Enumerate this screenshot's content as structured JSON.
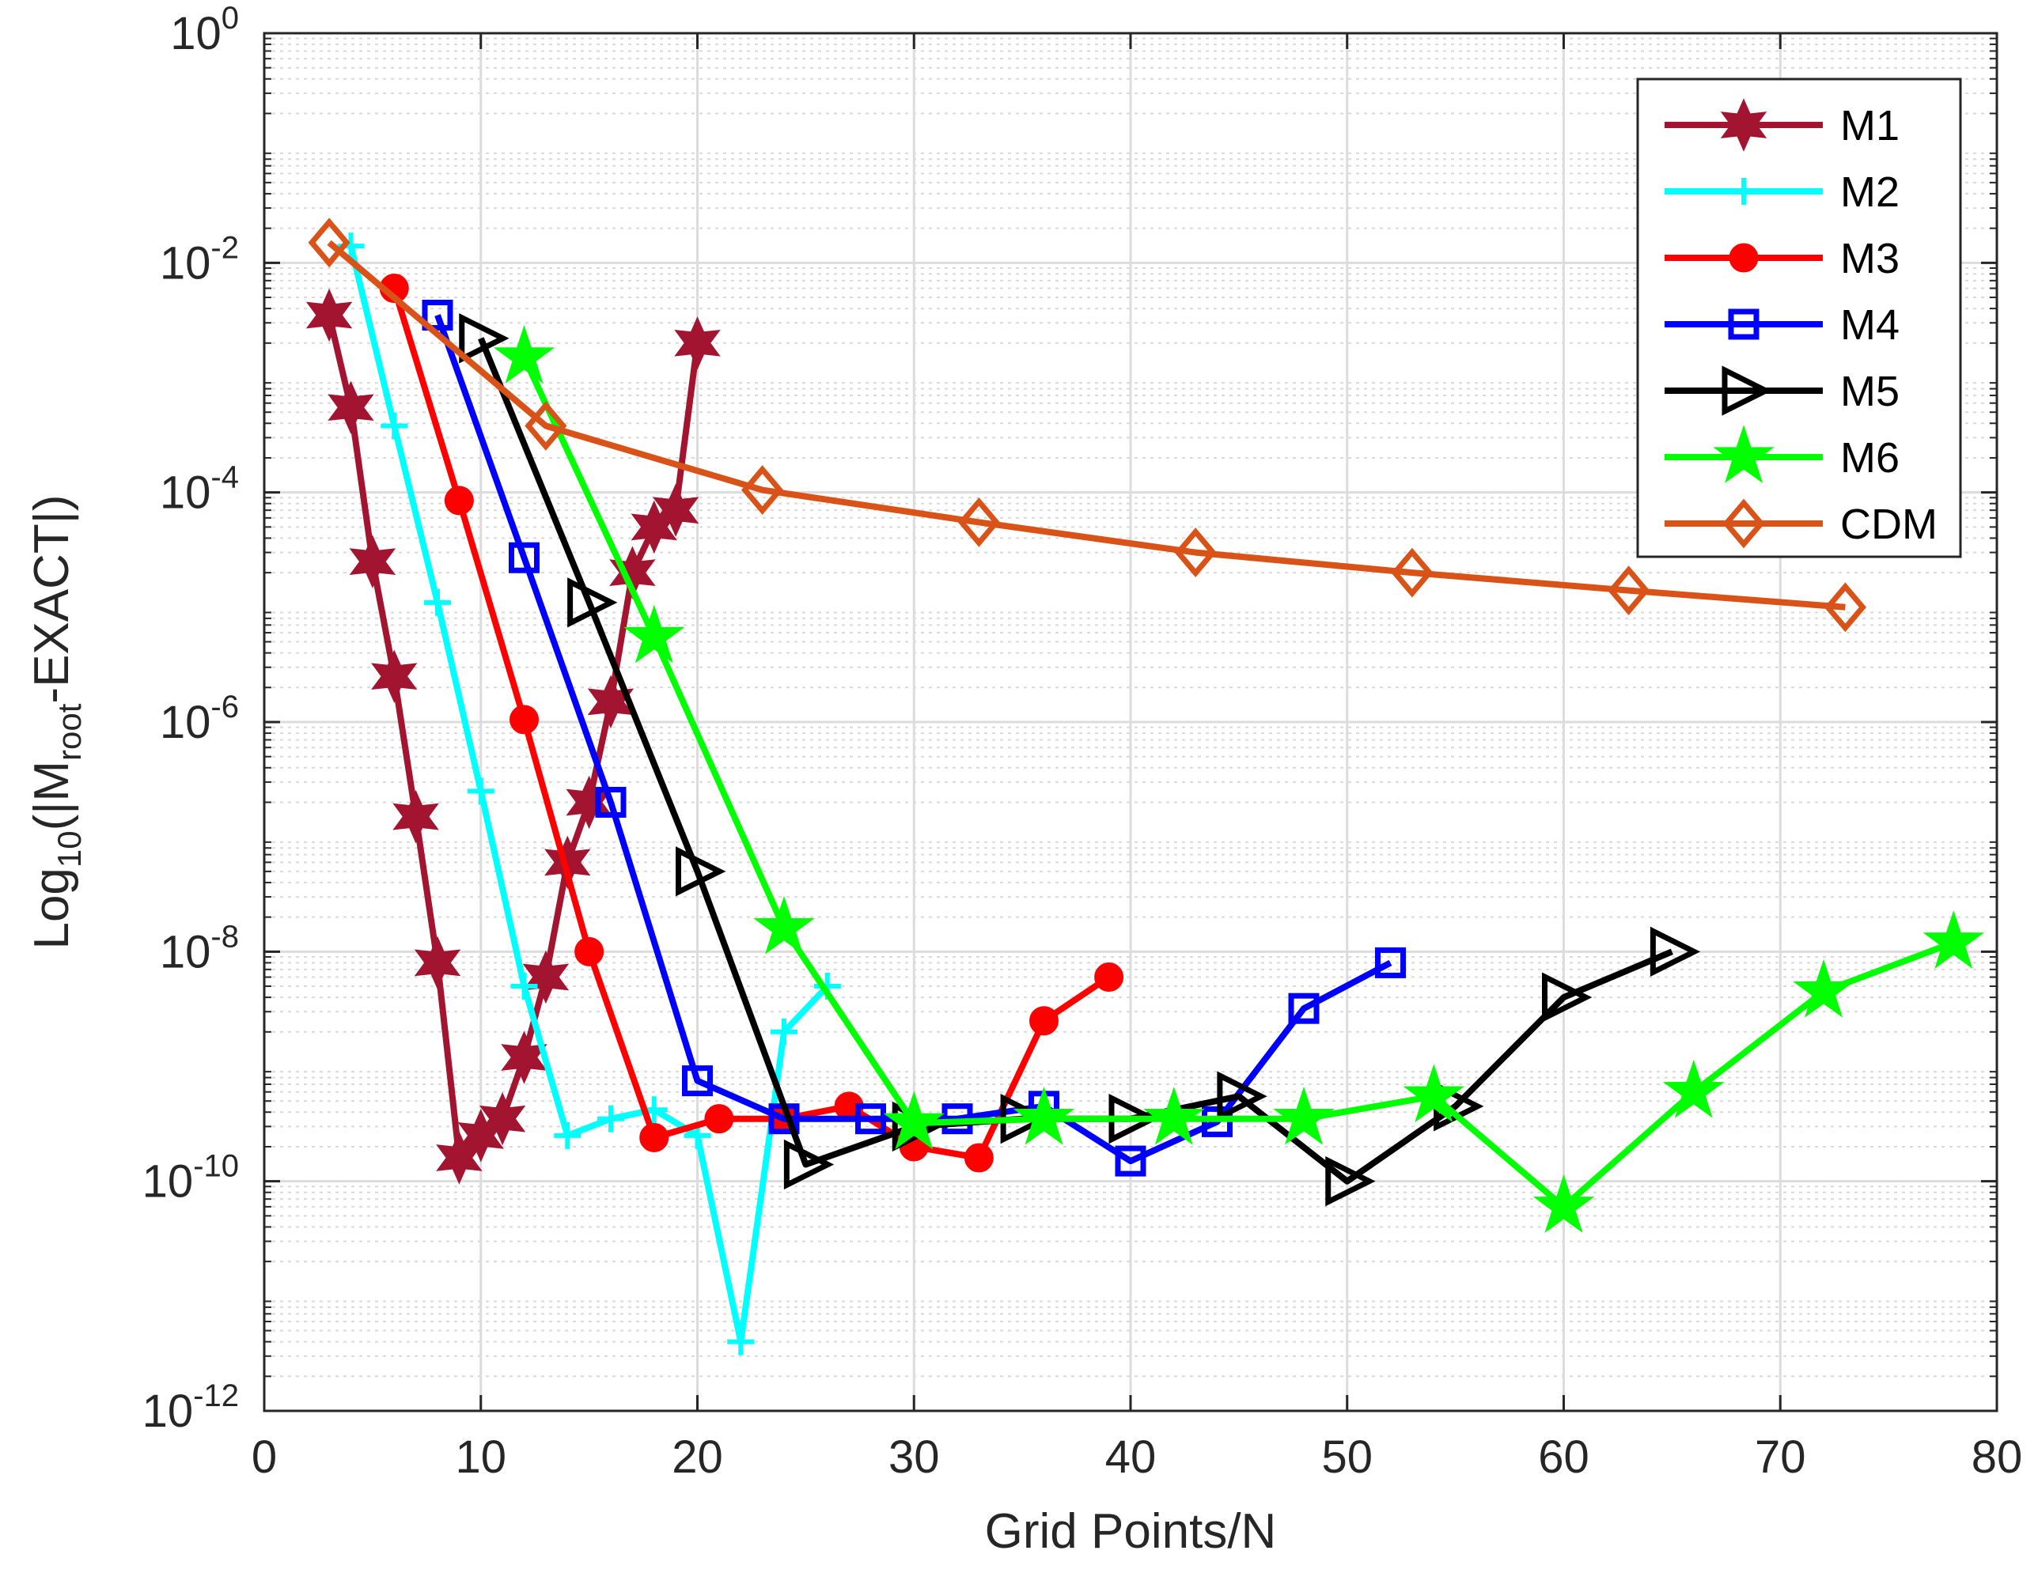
{
  "chart_data": {
    "type": "line",
    "title": "",
    "xlabel": "Grid Points/N",
    "ylabel": {
      "prefix": "Log",
      "prefix_sub": "10",
      "middle": "(|M",
      "middle_sub": "root",
      "suffix": "-EXACT|)"
    },
    "xlim": [
      0,
      80
    ],
    "ylim_exponent": [
      -12,
      0
    ],
    "yscale": "log",
    "grid": true,
    "legend_location": "top-right",
    "x_ticks": [
      "0",
      "10",
      "20",
      "30",
      "40",
      "50",
      "60",
      "70",
      "80"
    ],
    "y_ticks": [
      {
        "base": "10",
        "exp": "-12"
      },
      {
        "base": "10",
        "exp": "-10"
      },
      {
        "base": "10",
        "exp": "-8"
      },
      {
        "base": "10",
        "exp": "-6"
      },
      {
        "base": "10",
        "exp": "-4"
      },
      {
        "base": "10",
        "exp": "-2"
      },
      {
        "base": "10",
        "exp": "0"
      }
    ],
    "series": [
      {
        "name": "M1",
        "color": "#a2142f",
        "marker": "hexagram",
        "x": [
          3,
          4,
          5,
          6,
          7,
          8,
          9,
          10,
          11,
          12,
          13,
          14,
          15,
          16,
          17,
          18,
          19,
          20
        ],
        "y": [
          0.0035,
          0.00055,
          2.5e-05,
          2.5e-06,
          1.5e-07,
          8e-09,
          1.6e-10,
          2.5e-10,
          3.5e-10,
          1.2e-09,
          6e-09,
          6e-08,
          2e-07,
          1.5e-06,
          2e-05,
          5e-05,
          7e-05,
          0.002
        ]
      },
      {
        "name": "M2",
        "color": "#00ffff",
        "marker": "plus",
        "x": [
          4,
          6,
          8,
          10,
          12,
          14,
          16,
          18,
          20,
          22,
          24,
          26
        ],
        "y": [
          0.014,
          0.00038,
          1.1e-05,
          2.5e-07,
          5e-09,
          2.5e-10,
          3.5e-10,
          4.2e-10,
          2.5e-10,
          4e-12,
          2e-09,
          5e-09
        ]
      },
      {
        "name": "M3",
        "color": "#ff0000",
        "marker": "circle",
        "x": [
          6,
          9,
          12,
          15,
          18,
          21,
          24,
          27,
          30,
          33,
          36,
          39
        ],
        "y": [
          0.006,
          8.5e-05,
          1.05e-06,
          1e-08,
          2.4e-10,
          3.5e-10,
          3.5e-10,
          4.5e-10,
          2e-10,
          1.6e-10,
          2.5e-09,
          6e-09
        ]
      },
      {
        "name": "M4",
        "color": "#0000ff",
        "marker": "square",
        "x": [
          8,
          12,
          16,
          20,
          24,
          28,
          32,
          36,
          40,
          44,
          48,
          52
        ],
        "y": [
          0.0035,
          2.7e-05,
          2e-07,
          7.5e-10,
          3.5e-10,
          3.5e-10,
          3.5e-10,
          4.5e-10,
          1.5e-10,
          3.3e-10,
          3.2e-09,
          8e-09
        ]
      },
      {
        "name": "M5",
        "color": "#000000",
        "marker": "triangle-right",
        "x": [
          10,
          15,
          20,
          25,
          30,
          35,
          40,
          45,
          50,
          55,
          60,
          65
        ],
        "y": [
          0.0022,
          1.1e-05,
          5e-08,
          1.4e-10,
          3e-10,
          3.5e-10,
          3.5e-10,
          5.5e-10,
          1e-10,
          4.5e-10,
          4e-09,
          1e-08
        ]
      },
      {
        "name": "M6",
        "color": "#00ff00",
        "marker": "pentagram",
        "x": [
          12,
          18,
          24,
          30,
          36,
          42,
          48,
          54,
          60,
          66,
          72,
          78
        ],
        "y": [
          0.0015,
          5.5e-06,
          1.6e-08,
          3.2e-10,
          3.5e-10,
          3.5e-10,
          3.5e-10,
          5.5e-10,
          6e-11,
          6e-10,
          4.5e-09,
          1.2e-08
        ]
      },
      {
        "name": "CDM",
        "color": "#d95319",
        "marker": "diamond",
        "x": [
          3,
          13,
          23,
          33,
          43,
          53,
          63,
          73
        ],
        "y": [
          0.015,
          0.00038,
          0.000105,
          5.5e-05,
          3e-05,
          2e-05,
          1.4e-05,
          1e-05
        ]
      }
    ]
  }
}
